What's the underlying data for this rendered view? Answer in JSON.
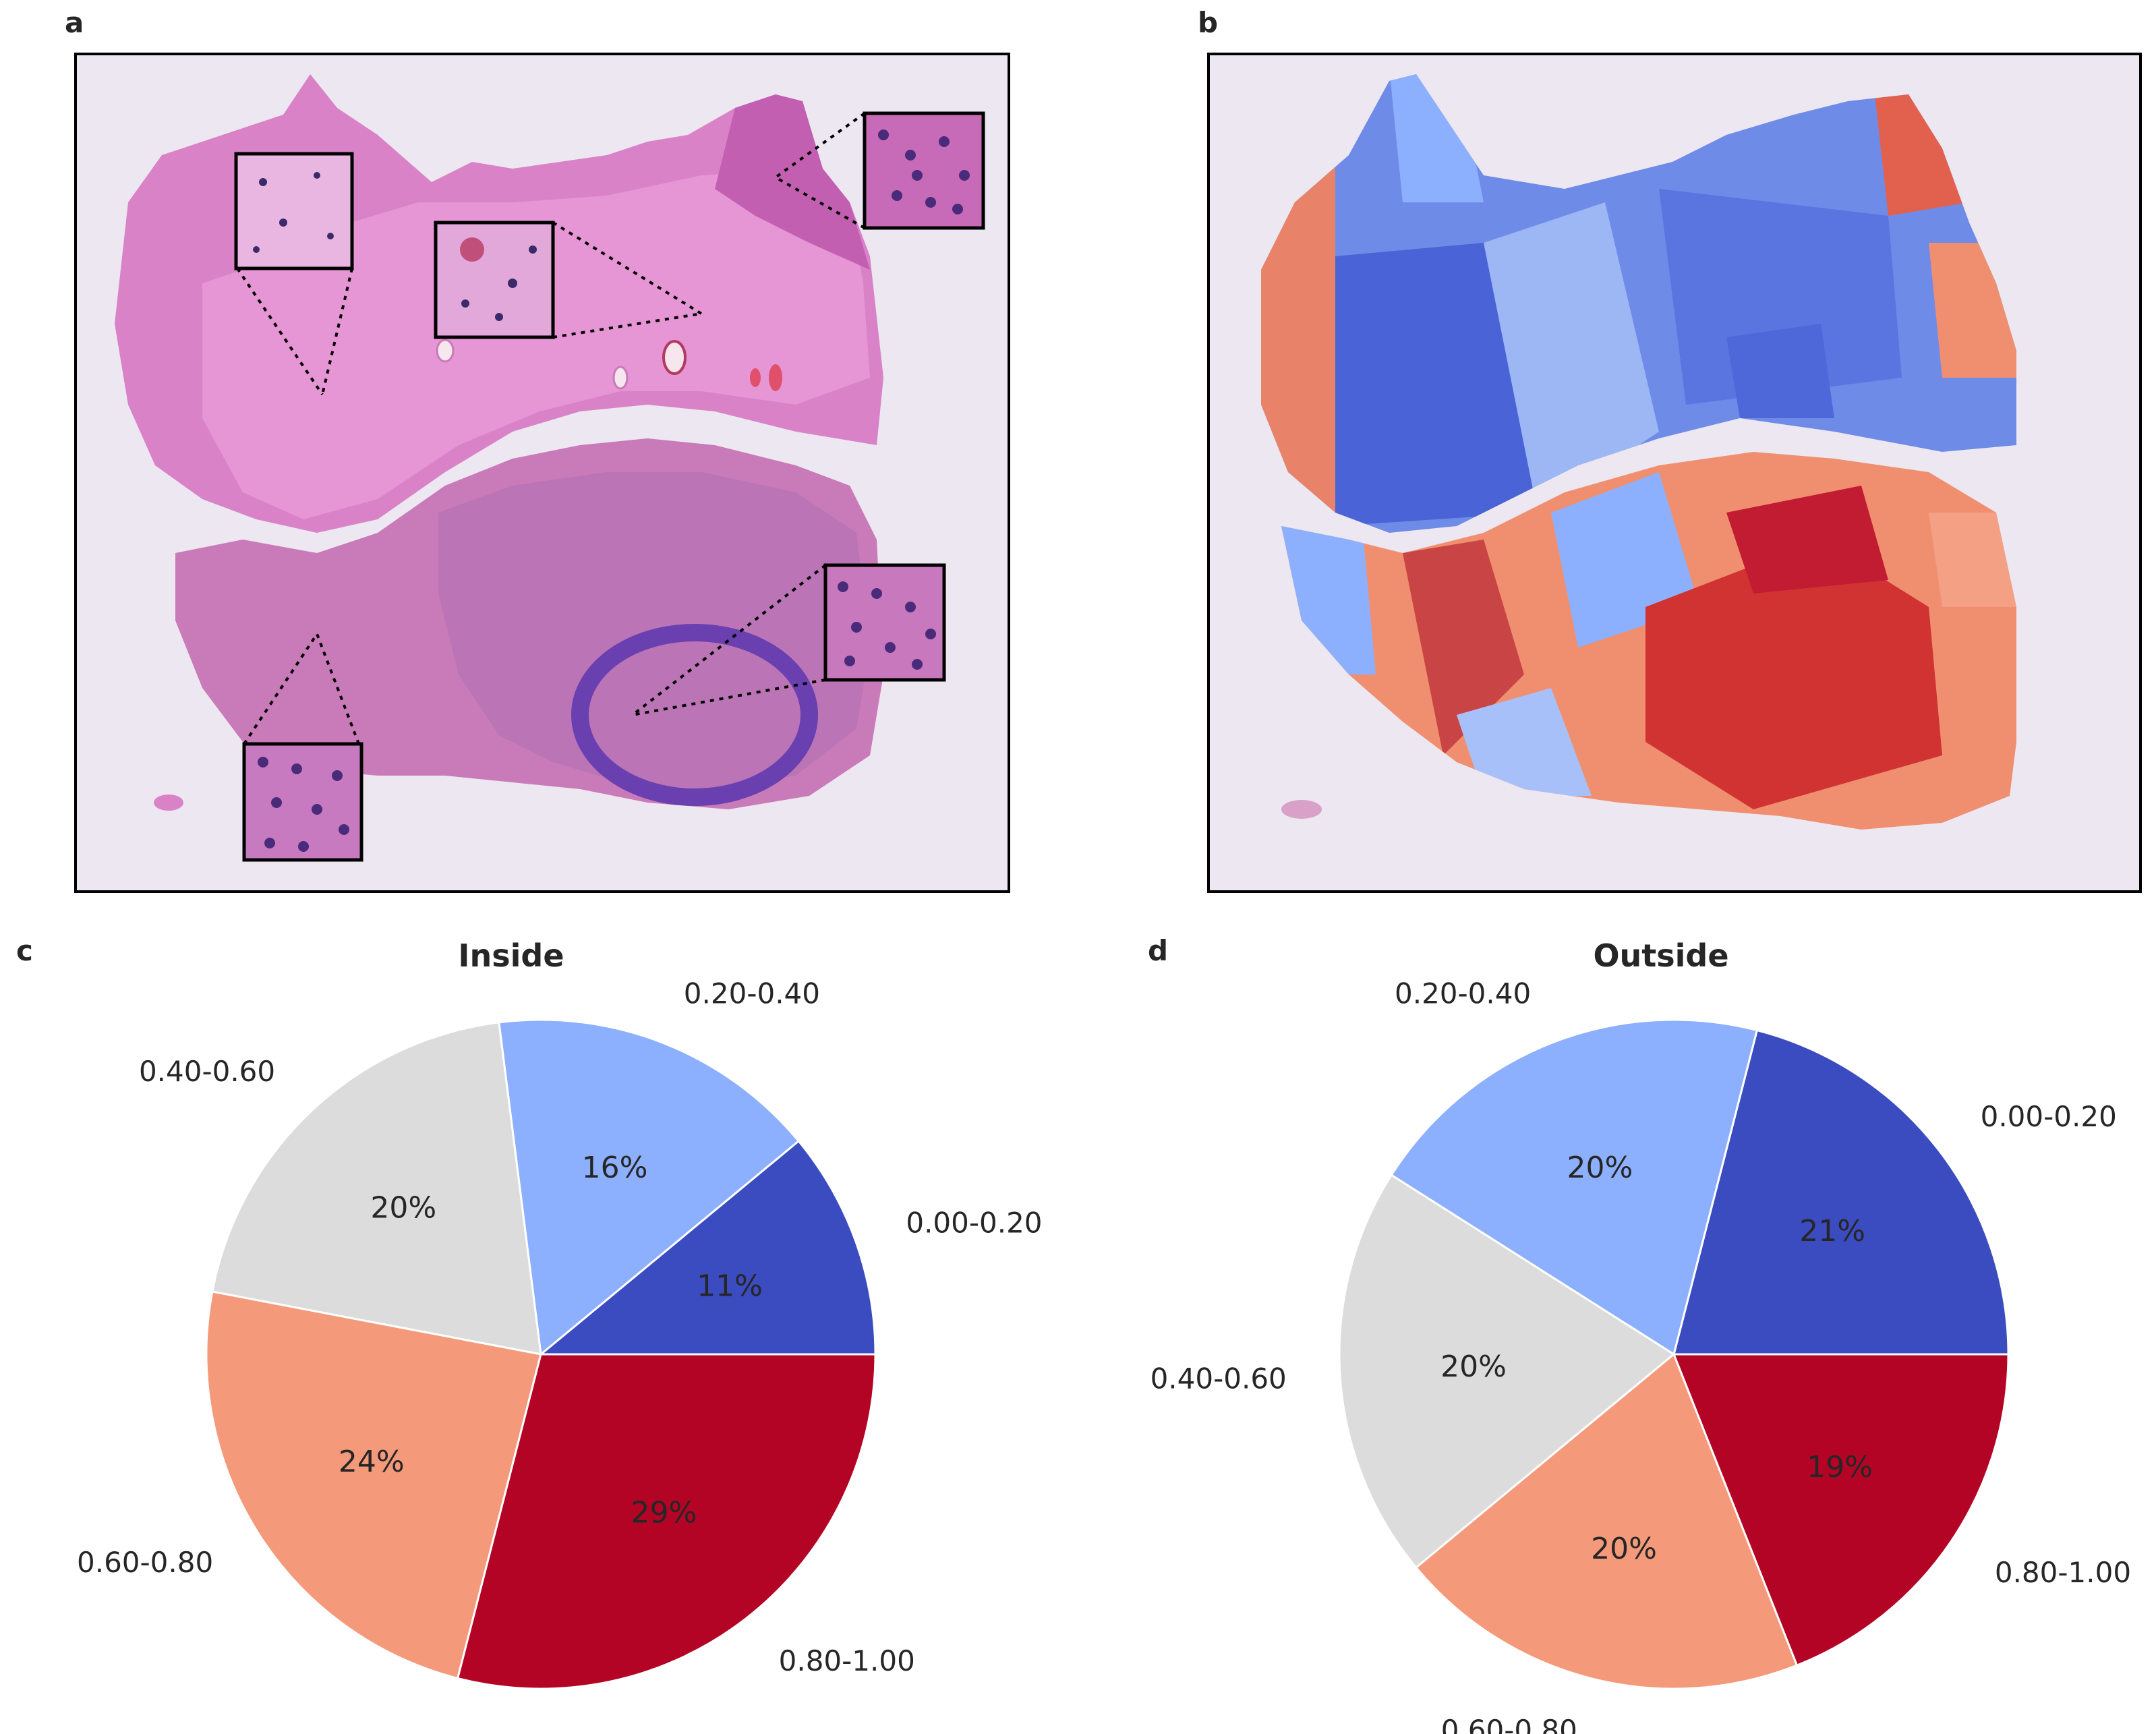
{
  "figure": {
    "panel_letters": [
      "a",
      "b",
      "c",
      "d"
    ]
  },
  "histology": {
    "panel_a_desc": "H&E stained tissue section with five magnified insets and a purple ink circle",
    "panel_b_desc": "Spatial spot map colored blue-to-red overlaid on the tissue section"
  },
  "colors": {
    "cat0": "#3b4cc0",
    "cat1": "#8db0fe",
    "cat2": "#dddcdc",
    "cat3": "#f49a7b",
    "cat4": "#b40426",
    "tissue": "#d982c8",
    "tissue_dark": "#c25fb0",
    "slide_bg": "#ece7f0",
    "ink": "#6a3fb0"
  },
  "chart_data": [
    {
      "type": "pie",
      "title": "Inside",
      "categories": [
        "0.00-0.20",
        "0.20-0.40",
        "0.40-0.60",
        "0.60-0.80",
        "0.80-1.00"
      ],
      "values": [
        11,
        16,
        20,
        24,
        29
      ],
      "labels": [
        "11%",
        "16%",
        "20%",
        "24%",
        "29%"
      ],
      "start_angle_deg": 0,
      "direction": "counterclockwise"
    },
    {
      "type": "pie",
      "title": "Outside",
      "categories": [
        "0.00-0.20",
        "0.20-0.40",
        "0.40-0.60",
        "0.60-0.80",
        "0.80-1.00"
      ],
      "values": [
        21,
        20,
        20,
        20,
        19
      ],
      "labels": [
        "21%",
        "20%",
        "20%",
        "20%",
        "19%"
      ],
      "start_angle_deg": 0,
      "direction": "counterclockwise"
    }
  ]
}
